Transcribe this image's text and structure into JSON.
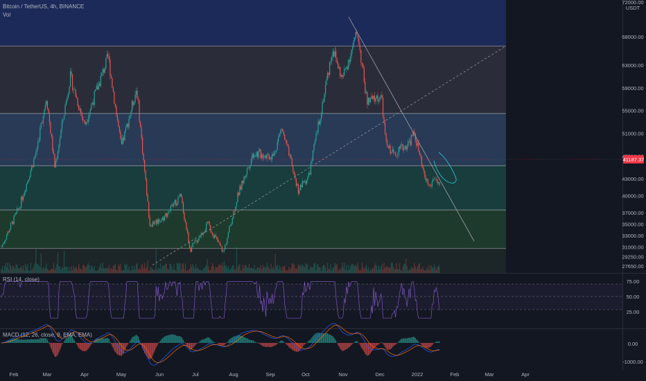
{
  "header": {
    "symbol_line": "Bitcoin / TetherUS, 4h, BINANCE",
    "volume_label": "Vol",
    "currency": "USDT",
    "top_price_label": "72000.00",
    "last_price_label": "41187.37"
  },
  "colors": {
    "background": "#131722",
    "up": "#26a69a",
    "down": "#ef5350",
    "rsi_line": "#7e57c2",
    "macd_line": "#2962ff",
    "signal_line": "#ff6d00",
    "trend_line": "#9598a1",
    "ellipse": "#26c6da",
    "last_price": "#f23645"
  },
  "chart_data": {
    "type": "candlestick",
    "timeframe": "4h",
    "exchange": "BINANCE",
    "price_axis_ticks": [
      68000,
      63000,
      59000,
      55000,
      51000,
      47000,
      43000,
      40000,
      37000,
      35000,
      33000,
      31000,
      29250,
      27650
    ],
    "price_range": [
      26400,
      74500
    ],
    "time_axis_ticks": [
      "Feb",
      "Mar",
      "Apr",
      "May",
      "Jun",
      "Jul",
      "Aug",
      "Sep",
      "Oct",
      "Nov",
      "Dec",
      "2022",
      "Feb",
      "Mar",
      "Apr"
    ],
    "price_path": [
      {
        "x": "Jan 14",
        "close": 31000
      },
      {
        "x": "Jan 29",
        "close": 38000
      },
      {
        "x": "Feb 12",
        "close": 47500
      },
      {
        "x": "Feb 21",
        "close": 57500
      },
      {
        "x": "Feb 28",
        "close": 45000
      },
      {
        "x": "Mar 13",
        "close": 61000
      },
      {
        "x": "Mar 25",
        "close": 52500
      },
      {
        "x": "Apr 14",
        "close": 64500
      },
      {
        "x": "Apr 25",
        "close": 48500
      },
      {
        "x": "May 8",
        "close": 59000
      },
      {
        "x": "May 12",
        "close": 50000
      },
      {
        "x": "May 19",
        "close": 35000
      },
      {
        "x": "May 30",
        "close": 36000
      },
      {
        "x": "Jun 14",
        "close": 40000
      },
      {
        "x": "Jun 22",
        "close": 30500
      },
      {
        "x": "Jul 7",
        "close": 35000
      },
      {
        "x": "Jul 20",
        "close": 30000
      },
      {
        "x": "Aug 1",
        "close": 40000
      },
      {
        "x": "Aug 14",
        "close": 47500
      },
      {
        "x": "Aug 31",
        "close": 47000
      },
      {
        "x": "Sep 7",
        "close": 52000
      },
      {
        "x": "Sep 21",
        "close": 41000
      },
      {
        "x": "Sep 30",
        "close": 43500
      },
      {
        "x": "Oct 20",
        "close": 66000
      },
      {
        "x": "Oct 28",
        "close": 60500
      },
      {
        "x": "Nov 10",
        "close": 68800
      },
      {
        "x": "Nov 18",
        "close": 56500
      },
      {
        "x": "Nov 30",
        "close": 57500
      },
      {
        "x": "Dec 4",
        "close": 49000
      },
      {
        "x": "Dec 10",
        "close": 47500
      },
      {
        "x": "Dec 22",
        "close": 49000
      },
      {
        "x": "Dec 28",
        "close": 51000
      },
      {
        "x": "Jan 5",
        "close": 43500
      },
      {
        "x": "Jan 10",
        "close": 41500
      },
      {
        "x": "Jan 14",
        "close": 43500
      },
      {
        "x": "Jan 18",
        "close": 41187
      }
    ],
    "horizontal_levels": [
      66400,
      54500,
      45300,
      37500,
      30700
    ],
    "zones": [
      {
        "from": 66400,
        "to": 74500,
        "color": "#1c2a59"
      },
      {
        "from": 54500,
        "to": 66400,
        "color": "#2a2d39"
      },
      {
        "from": 45300,
        "to": 54500,
        "color": "#283a55"
      },
      {
        "from": 37500,
        "to": 45300,
        "color": "#193c3c"
      },
      {
        "from": 30700,
        "to": 37500,
        "color": "#1e3a2c"
      },
      {
        "from": 26400,
        "to": 30700,
        "color": "#1c2527"
      }
    ],
    "indicators": {
      "rsi": {
        "label": "RSI (14, close)",
        "ticks": [
          "75.00",
          "50.00",
          "25.00"
        ],
        "levels": [
          70,
          50,
          30
        ]
      },
      "macd": {
        "label": "MACD (12, 26, close, 9, EMA, EMA)",
        "ticks": [
          "0.00",
          "-1000.00"
        ]
      }
    }
  }
}
